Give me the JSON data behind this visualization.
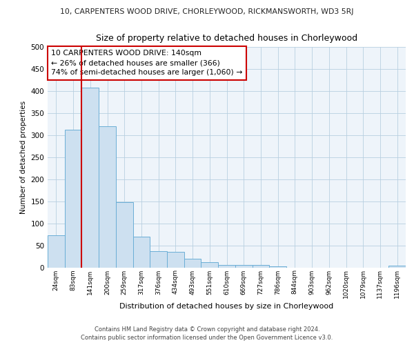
{
  "title_top": "10, CARPENTERS WOOD DRIVE, CHORLEYWOOD, RICKMANSWORTH, WD3 5RJ",
  "title_main": "Size of property relative to detached houses in Chorleywood",
  "xlabel": "Distribution of detached houses by size in Chorleywood",
  "ylabel": "Number of detached properties",
  "bin_labels": [
    "24sqm",
    "83sqm",
    "141sqm",
    "200sqm",
    "259sqm",
    "317sqm",
    "376sqm",
    "434sqm",
    "493sqm",
    "551sqm",
    "610sqm",
    "669sqm",
    "727sqm",
    "786sqm",
    "844sqm",
    "903sqm",
    "962sqm",
    "1020sqm",
    "1079sqm",
    "1137sqm",
    "1196sqm"
  ],
  "bar_values": [
    72,
    312,
    407,
    319,
    147,
    70,
    37,
    35,
    20,
    11,
    6,
    5,
    5,
    2,
    0,
    0,
    0,
    0,
    0,
    0,
    4
  ],
  "bar_color": "#cde0f0",
  "bar_edge_color": "#6aaed6",
  "ylim": [
    0,
    500
  ],
  "yticks": [
    0,
    50,
    100,
    150,
    200,
    250,
    300,
    350,
    400,
    450,
    500
  ],
  "property_line_x": 1.5,
  "property_line_color": "#cc0000",
  "annotation_text": "10 CARPENTERS WOOD DRIVE: 140sqm\n← 26% of detached houses are smaller (366)\n74% of semi-detached houses are larger (1,060) →",
  "annotation_box_color": "#cc0000",
  "footnote1": "Contains HM Land Registry data © Crown copyright and database right 2024.",
  "footnote2": "Contains public sector information licensed under the Open Government Licence v3.0.",
  "axes_bg_color": "#eef4fa",
  "grid_color": "#b8cfe0"
}
